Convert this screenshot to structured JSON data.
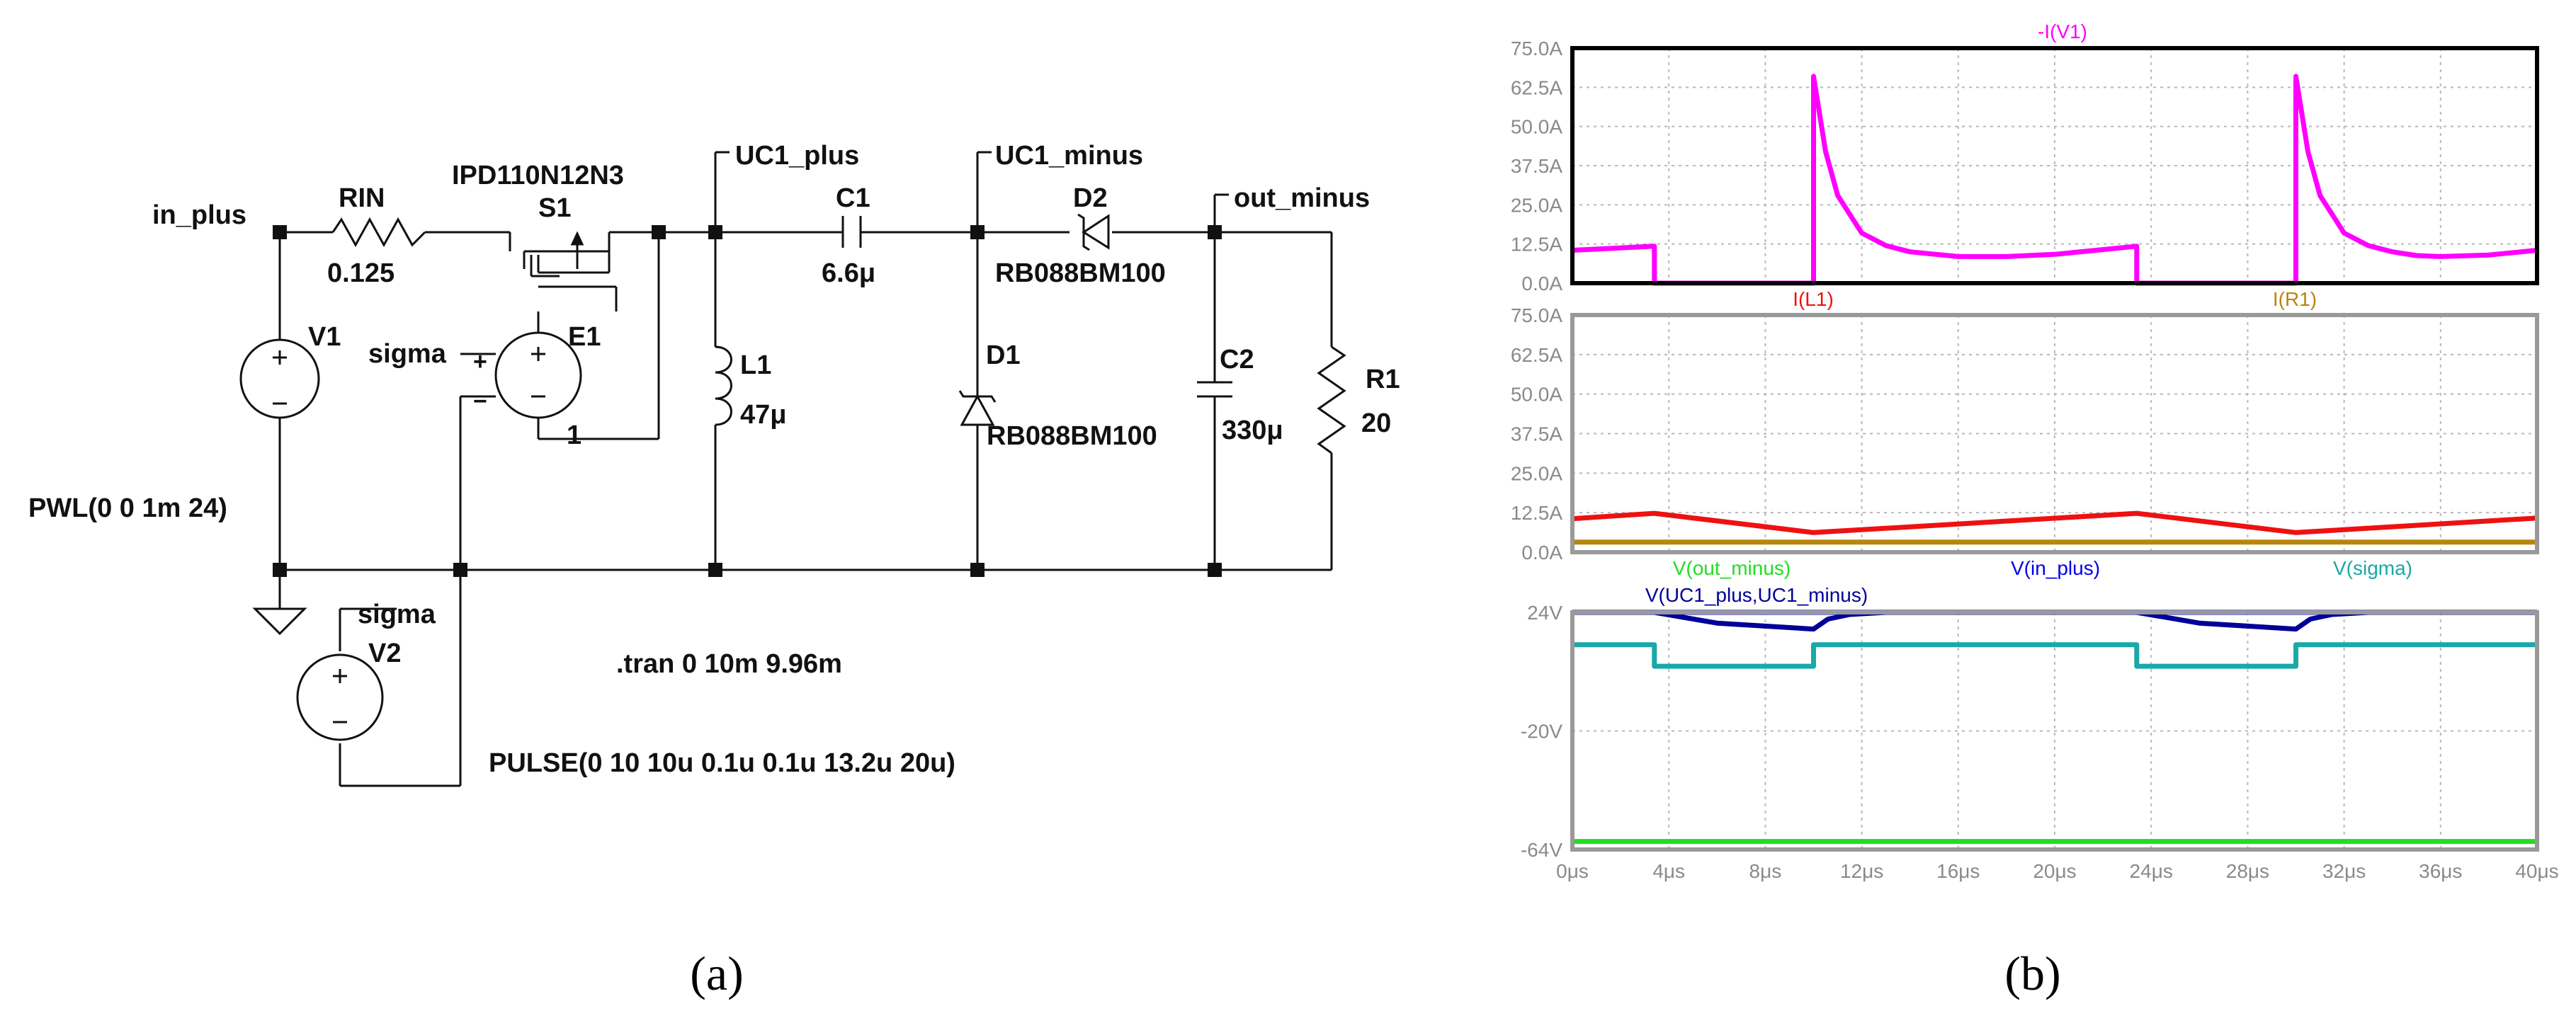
{
  "figure": {
    "caption_a": "(a)",
    "caption_b": "(b)"
  },
  "schematic": {
    "net_labels": {
      "in_plus": "in_plus",
      "uc1_plus": "UC1_plus",
      "uc1_minus": "UC1_minus",
      "out_minus": "out_minus",
      "sigma_e1": "sigma",
      "sigma_v2": "sigma"
    },
    "components": {
      "rin": {
        "name": "RIN",
        "value": "0.125"
      },
      "s1": {
        "name": "S1",
        "model": "IPD110N12N3"
      },
      "v1": {
        "name": "V1",
        "value": "PWL(0 0 1m 24)"
      },
      "e1": {
        "name": "E1",
        "value": "1"
      },
      "l1": {
        "name": "L1",
        "value": "47μ"
      },
      "c1": {
        "name": "C1",
        "value": "6.6μ"
      },
      "d1": {
        "name": "D1",
        "model": "RB088BM100"
      },
      "d2": {
        "name": "D2",
        "model": "RB088BM100"
      },
      "c2": {
        "name": "C2",
        "value": "330μ"
      },
      "r1": {
        "name": "R1",
        "value": "20"
      },
      "v2": {
        "name": "V2",
        "value": "PULSE(0 10 10u 0.1u 0.1u 13.2u 20u)"
      }
    },
    "directive": ".tran 0 10m 9.96m",
    "e1_pins": {
      "plus": "+",
      "minus": "−"
    },
    "colors": {
      "wire": "#111111",
      "node": "#111111"
    }
  },
  "chart_data": [
    {
      "type": "line",
      "panel": "top",
      "x": [
        0,
        40
      ],
      "xunit": "μs",
      "ylim": [
        0,
        75
      ],
      "yticks": [
        "75.0A",
        "62.5A",
        "50.0A",
        "37.5A",
        "25.0A",
        "12.5A",
        "0.0A"
      ],
      "grid": true,
      "series": [
        {
          "name": "-I(V1)",
          "color": "#ff00ff",
          "points": [
            [
              0,
              10.5
            ],
            [
              3.4,
              11.8
            ],
            [
              3.4,
              0
            ],
            [
              10,
              0
            ],
            [
              10,
              66
            ],
            [
              10.5,
              42
            ],
            [
              11,
              28
            ],
            [
              12,
              16
            ],
            [
              13,
              12
            ],
            [
              14,
              10
            ],
            [
              16,
              8.5
            ],
            [
              18,
              8.5
            ],
            [
              20,
              9.2
            ],
            [
              23.4,
              11.8
            ],
            [
              23.4,
              0
            ],
            [
              30,
              0
            ],
            [
              30,
              66
            ],
            [
              30.5,
              42
            ],
            [
              31,
              28
            ],
            [
              32,
              16
            ],
            [
              33,
              12
            ],
            [
              34,
              10
            ],
            [
              35,
              8.8
            ],
            [
              36,
              8.5
            ],
            [
              38,
              9
            ],
            [
              40,
              10.5
            ]
          ]
        }
      ]
    },
    {
      "type": "line",
      "panel": "middle",
      "x": [
        0,
        40
      ],
      "xunit": "μs",
      "ylim": [
        0,
        75
      ],
      "yticks": [
        "75.0A",
        "62.5A",
        "50.0A",
        "37.5A",
        "25.0A",
        "12.5A",
        "0.0A"
      ],
      "grid": true,
      "series": [
        {
          "name": "I(L1)",
          "color": "#ee1111",
          "points": [
            [
              0,
              10.6
            ],
            [
              3.4,
              12.3
            ],
            [
              10,
              6.2
            ],
            [
              23.4,
              12.3
            ],
            [
              30,
              6.2
            ],
            [
              40,
              10.8
            ]
          ]
        },
        {
          "name": "I(R1)",
          "color": "#b8860b",
          "points": [
            [
              0,
              3.2
            ],
            [
              40,
              3.2
            ]
          ]
        }
      ]
    },
    {
      "type": "line",
      "panel": "bottom",
      "x": [
        0,
        40
      ],
      "xunit": "μs",
      "xticks": [
        "0μs",
        "4μs",
        "8μs",
        "12μs",
        "16μs",
        "20μs",
        "24μs",
        "28μs",
        "32μs",
        "36μs",
        "40μs"
      ],
      "ylim": [
        -64,
        24
      ],
      "yticks": [
        "24V",
        "-20V",
        "-64V"
      ],
      "grid": true,
      "series": [
        {
          "name": "V(out_minus)",
          "color": "#22dd22",
          "points": [
            [
              0,
              -61
            ],
            [
              40,
              -61
            ]
          ]
        },
        {
          "name": "V(in_plus)",
          "color": "#0000ee",
          "points": [
            [
              0,
              24
            ],
            [
              40,
              24
            ]
          ]
        },
        {
          "name": "V(sigma)",
          "color": "#1aa8a8",
          "points": [
            [
              0,
              12
            ],
            [
              3.4,
              12
            ],
            [
              3.4,
              4
            ],
            [
              10,
              4
            ],
            [
              10,
              12
            ],
            [
              23.4,
              12
            ],
            [
              23.4,
              4
            ],
            [
              30,
              4
            ],
            [
              30,
              12
            ],
            [
              40,
              12
            ]
          ]
        },
        {
          "name": "V(UC1_plus,UC1_minus)",
          "color": "#000099",
          "points": [
            [
              0,
              24
            ],
            [
              3.4,
              24
            ],
            [
              6,
              20
            ],
            [
              10,
              17.8
            ],
            [
              10.6,
              21.5
            ],
            [
              11.5,
              23.2
            ],
            [
              13,
              24
            ],
            [
              23.4,
              24
            ],
            [
              26,
              20
            ],
            [
              30,
              17.8
            ],
            [
              30.6,
              21.5
            ],
            [
              31.5,
              23.2
            ],
            [
              33,
              24
            ],
            [
              40,
              24
            ]
          ]
        }
      ]
    }
  ]
}
